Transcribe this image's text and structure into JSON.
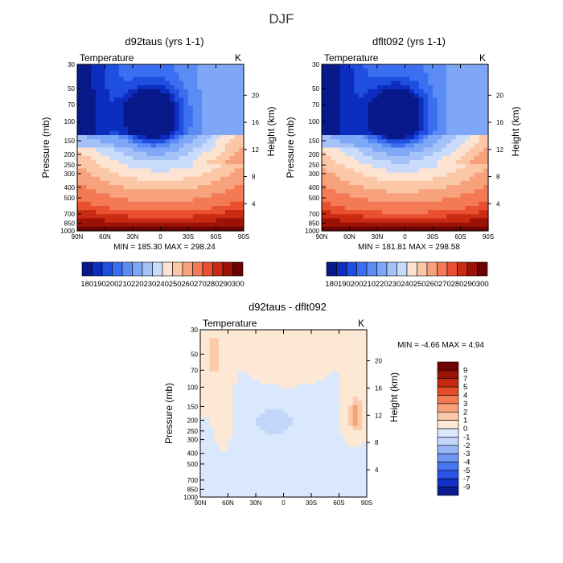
{
  "page_title": "DJF",
  "colors": {
    "cool_palette": [
      "#08198a",
      "#0d2dbf",
      "#1f4fe0",
      "#3b6ef0",
      "#5b8cf4",
      "#7ea8f7",
      "#a4c2f8",
      "#c8dbfb"
    ],
    "warm_palette": [
      "#fde4d2",
      "#fbc7a7",
      "#f8a27d",
      "#f47a56",
      "#e9502f",
      "#c92a12",
      "#9d1207",
      "#6b0303"
    ],
    "diff_cool": [
      "#0a1c8d",
      "#1230c4",
      "#2a55e6",
      "#4676f0",
      "#6f97f3",
      "#99b8f6",
      "#c1d6fa",
      "#d9e8fc"
    ],
    "diff_warm": [
      "#fde7d5",
      "#fbcaa8",
      "#f8a17a",
      "#f37a52",
      "#e24d2a",
      "#c42a12",
      "#9b1207",
      "#6e0303"
    ]
  },
  "chart_data": [
    {
      "id": "left_top",
      "type": "heatmap",
      "title": "d92taus (yrs 1-1)",
      "variable_label": "Temperature",
      "units": "K",
      "xlabel": "",
      "ylabel": "Pressure (mb)",
      "ylabel_right": "Height (km)",
      "x_ticks": [
        "90N",
        "60N",
        "30N",
        "0",
        "30S",
        "60S",
        "90S"
      ],
      "x_range": [
        90,
        -90
      ],
      "y_ticks": [
        30,
        50,
        70,
        100,
        150,
        200,
        250,
        300,
        400,
        500,
        700,
        850,
        1000
      ],
      "y_range": [
        30,
        1000
      ],
      "height_ticks": [
        4,
        8,
        12,
        16,
        20
      ],
      "stats": "MIN = 185.30   MAX = 298.24",
      "min": 185.3,
      "max": 298.24,
      "colorbar_labels": [
        "180",
        "190",
        "200",
        "210",
        "220",
        "230",
        "240",
        "250",
        "260",
        "270",
        "280",
        "290",
        "300"
      ],
      "colorbar_levels": [
        180,
        185,
        190,
        195,
        200,
        205,
        210,
        215,
        220,
        230,
        240,
        250,
        260,
        270,
        280,
        290,
        300
      ],
      "colorbar_orientation": "horizontal"
    },
    {
      "id": "right_top",
      "type": "heatmap",
      "title": "dflt092 (yrs 1-1)",
      "variable_label": "Temperature",
      "units": "K",
      "xlabel": "",
      "ylabel": "Pressure (mb)",
      "ylabel_right": "Height (km)",
      "x_ticks": [
        "90N",
        "60N",
        "30N",
        "0",
        "30S",
        "60S",
        "90S"
      ],
      "x_range": [
        90,
        -90
      ],
      "y_ticks": [
        30,
        50,
        70,
        100,
        150,
        200,
        250,
        300,
        400,
        500,
        700,
        850,
        1000
      ],
      "y_range": [
        30,
        1000
      ],
      "height_ticks": [
        4,
        8,
        12,
        16,
        20
      ],
      "stats": "MIN = 181.81   MAX = 298.58",
      "min": 181.81,
      "max": 298.58,
      "colorbar_labels": [
        "180",
        "190",
        "200",
        "210",
        "220",
        "230",
        "240",
        "250",
        "260",
        "270",
        "280",
        "290",
        "300"
      ],
      "colorbar_levels": [
        180,
        185,
        190,
        195,
        200,
        205,
        210,
        215,
        220,
        230,
        240,
        250,
        260,
        270,
        280,
        290,
        300
      ],
      "colorbar_orientation": "horizontal"
    },
    {
      "id": "difference",
      "type": "heatmap",
      "title": "d92taus - dflt092",
      "variable_label": "Temperature",
      "units": "K",
      "xlabel": "",
      "ylabel": "Pressure (mb)",
      "ylabel_right": "Height (km)",
      "x_ticks": [
        "90N",
        "60N",
        "30N",
        "0",
        "30S",
        "60S",
        "90S"
      ],
      "x_range": [
        90,
        -90
      ],
      "y_ticks": [
        30,
        50,
        70,
        100,
        150,
        200,
        250,
        300,
        400,
        500,
        700,
        850,
        1000
      ],
      "y_range": [
        30,
        1000
      ],
      "height_ticks": [
        4,
        8,
        12,
        16,
        20
      ],
      "stats": "MIN =   -4.66   MAX =   4.94",
      "min": -4.66,
      "max": 4.94,
      "colorbar_labels": [
        "9",
        "7",
        "5",
        "4",
        "3",
        "2",
        "1",
        "0",
        "-1",
        "-2",
        "-3",
        "-4",
        "-5",
        "-7",
        "-9"
      ],
      "colorbar_levels": [
        9,
        7,
        5,
        4,
        3,
        2,
        1,
        0,
        -1,
        -2,
        -3,
        -4,
        -5,
        -7,
        -9
      ],
      "colorbar_orientation": "vertical"
    }
  ]
}
